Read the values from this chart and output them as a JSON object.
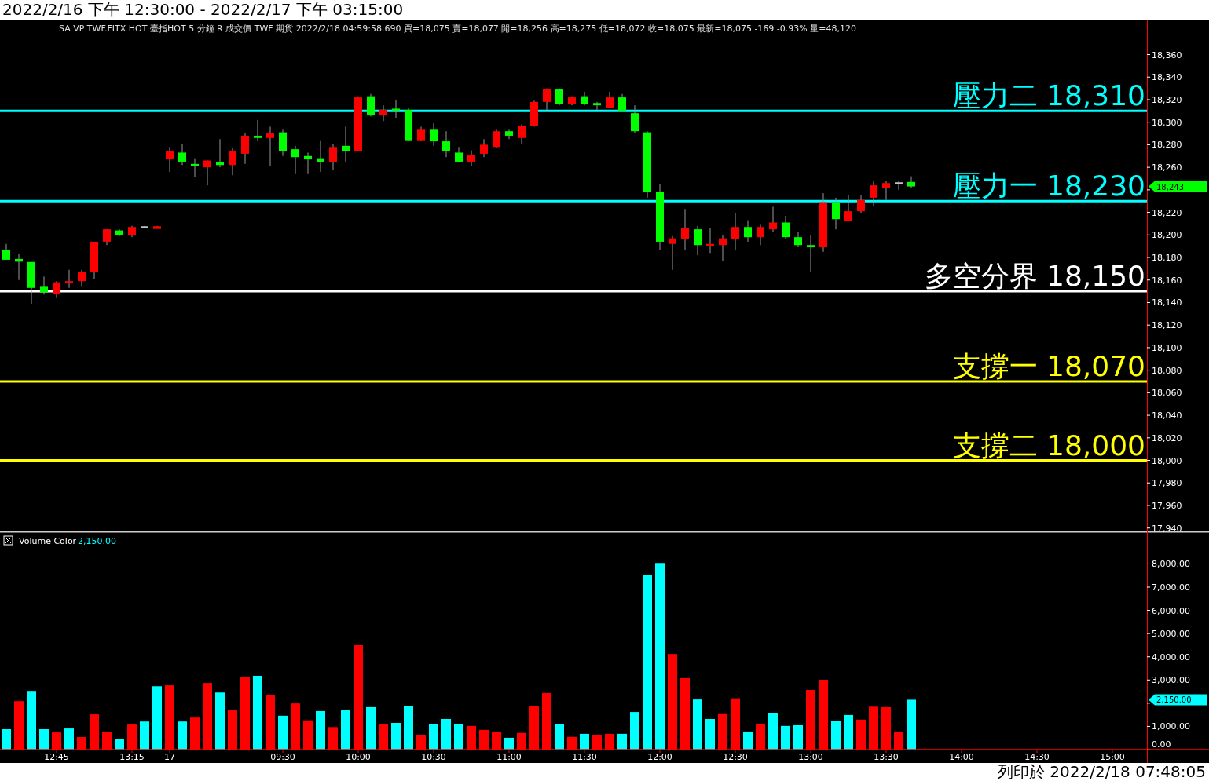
{
  "chart_data": [
    {
      "type": "candlestick",
      "title": "2022/2/16 下午 12:30:00 - 2022/2/17 下午 03:15:00",
      "annotations": [
        "SA VP TWF.FITX HOT 臺指HOT 5 分鐘 R 成交價 TWF 期貨 2022/2/18 04:59:58.690 買=18,075 賣=18,077 開=18,256 高=18,275 低=18,072 收=18,075 最新=18,075 -169 -0.93% 量=48,120",
        "18,243"
      ],
      "categories": [
        null,
        null,
        null,
        null,
        null,
        null,
        null,
        null,
        null,
        null,
        null,
        null,
        null,
        null,
        null,
        null,
        null,
        null,
        null,
        null,
        null,
        null,
        null,
        null,
        null,
        null,
        null,
        null,
        null,
        null,
        null,
        null,
        null,
        null,
        null,
        null,
        null,
        null,
        null,
        null,
        null,
        null,
        null,
        null,
        null,
        null,
        null,
        null,
        null,
        null,
        null,
        null,
        null,
        null,
        null,
        null,
        null,
        null,
        null,
        null,
        null,
        null,
        null,
        null,
        null,
        null,
        null,
        null,
        null,
        null,
        null,
        null,
        null,
        null,
        null,
        null,
        null,
        null,
        null,
        null,
        null,
        null,
        null,
        null,
        null,
        null,
        null,
        null,
        null,
        null,
        null
      ],
      "ohlc": [
        [
          18187,
          18192,
          18178,
          18178
        ],
        [
          18178,
          18183,
          18160,
          18177
        ],
        [
          18176,
          18176,
          18139,
          18153
        ],
        [
          18154,
          18163,
          18147,
          18149
        ],
        [
          18148,
          18159,
          18144,
          18158
        ],
        [
          18157,
          18169,
          18153,
          18159
        ],
        [
          18159,
          18169,
          18154,
          18167
        ],
        [
          18167,
          18194,
          18161,
          18194
        ],
        [
          18194,
          18205,
          18191,
          18205
        ],
        [
          18204,
          18205,
          18199,
          18200
        ],
        [
          18200,
          18208,
          18198,
          18207
        ],
        [
          18207,
          18208,
          18206,
          18207
        ],
        [
          18206,
          18208,
          18206,
          18207
        ],
        [
          18267,
          18278,
          18256,
          18274
        ],
        [
          18273,
          18281,
          18262,
          18265
        ],
        [
          18263,
          18268,
          18251,
          18261
        ],
        [
          18260,
          18266,
          18244,
          18266
        ],
        [
          18265,
          18285,
          18260,
          18262
        ],
        [
          18262,
          18277,
          18253,
          18274
        ],
        [
          18272,
          18290,
          18263,
          18288
        ],
        [
          18288,
          18302,
          18283,
          18286
        ],
        [
          18286,
          18296,
          18261,
          18290
        ],
        [
          18291,
          18294,
          18270,
          18274
        ],
        [
          18276,
          18279,
          18254,
          18269
        ],
        [
          18270,
          18273,
          18254,
          18267
        ],
        [
          18268,
          18284,
          18256,
          18265
        ],
        [
          18265,
          18281,
          18258,
          18278
        ],
        [
          18279,
          18296,
          18265,
          18274
        ],
        [
          18274,
          18323,
          18274,
          18322
        ],
        [
          18323,
          18325,
          18305,
          18306
        ],
        [
          18306,
          18315,
          18301,
          18311
        ],
        [
          18312,
          18320,
          18304,
          18310
        ],
        [
          18311,
          18313,
          18283,
          18284
        ],
        [
          18284,
          18296,
          18283,
          18294
        ],
        [
          18294,
          18299,
          18279,
          18283
        ],
        [
          18283,
          18292,
          18269,
          18274
        ],
        [
          18273,
          18278,
          18265,
          18265
        ],
        [
          18265,
          18275,
          18261,
          18271
        ],
        [
          18272,
          18285,
          18269,
          18280
        ],
        [
          18278,
          18294,
          18277,
          18292
        ],
        [
          18292,
          18294,
          18285,
          18288
        ],
        [
          18286,
          18298,
          18281,
          18297
        ],
        [
          18297,
          18319,
          18296,
          18318
        ],
        [
          18318,
          18330,
          18311,
          18329
        ],
        [
          18329,
          18330,
          18315,
          18316
        ],
        [
          18316,
          18323,
          18315,
          18322
        ],
        [
          18323,
          18327,
          18315,
          18316
        ],
        [
          18317,
          18318,
          18311,
          18315
        ],
        [
          18313,
          18327,
          18313,
          18322
        ],
        [
          18322,
          18325,
          18310,
          18310
        ],
        [
          18308,
          18315,
          18290,
          18292
        ],
        [
          18291,
          18292,
          18233,
          18238
        ],
        [
          18238,
          18245,
          18187,
          18194
        ],
        [
          18192,
          18199,
          18169,
          18197
        ],
        [
          18196,
          18223,
          18187,
          18206
        ],
        [
          18205,
          18208,
          18182,
          18191
        ],
        [
          18190,
          18206,
          18184,
          18192
        ],
        [
          18191,
          18200,
          18177,
          18197
        ],
        [
          18196,
          18219,
          18187,
          18207
        ],
        [
          18207,
          18213,
          18194,
          18198
        ],
        [
          18198,
          18209,
          18191,
          18207
        ],
        [
          18205,
          18225,
          18203,
          18211
        ],
        [
          18211,
          18217,
          18196,
          18198
        ],
        [
          18198,
          18203,
          18189,
          18191
        ],
        [
          18191,
          18200,
          18167,
          18189
        ],
        [
          18189,
          18237,
          18185,
          18229
        ],
        [
          18229,
          18233,
          18205,
          18214
        ],
        [
          18212,
          18235,
          18212,
          18221
        ],
        [
          18221,
          18235,
          18219,
          18231
        ],
        [
          18233,
          18248,
          18226,
          18244
        ],
        [
          18242,
          18248,
          18231,
          18246
        ],
        [
          18246,
          18248,
          18240,
          18246
        ],
        [
          18247,
          18252,
          18242,
          18243
        ],
        null,
        null,
        null,
        null,
        null,
        null,
        null,
        null,
        null,
        null,
        null,
        null,
        null,
        null,
        null,
        null,
        null,
        null
      ],
      "ylim": [
        17937,
        18391
      ],
      "yticks": [
        {
          "value": 17940,
          "label": "17,940"
        },
        {
          "value": 17960,
          "label": "17,960"
        },
        {
          "value": 17980,
          "label": "17,980"
        },
        {
          "value": 18000,
          "label": "18,000"
        },
        {
          "value": 18020,
          "label": "18,020"
        },
        {
          "value": 18040,
          "label": "18,040"
        },
        {
          "value": 18060,
          "label": "18,060"
        },
        {
          "value": 18080,
          "label": "18,080"
        },
        {
          "value": 18100,
          "label": "18,100"
        },
        {
          "value": 18120,
          "label": "18,120"
        },
        {
          "value": 18140,
          "label": "18,140"
        },
        {
          "value": 18160,
          "label": "18,160"
        },
        {
          "value": 18180,
          "label": "18,180"
        },
        {
          "value": 18200,
          "label": "18,200"
        },
        {
          "value": 18220,
          "label": "18,220"
        },
        {
          "value": 18240,
          "label": null
        },
        {
          "value": 18260,
          "label": "18,260"
        },
        {
          "value": 18280,
          "label": "18,280"
        },
        {
          "value": 18300,
          "label": "18,300"
        },
        {
          "value": 18320,
          "label": "18,320"
        },
        {
          "value": 18340,
          "label": "18,340"
        },
        {
          "value": 18360,
          "label": "18,360"
        }
      ],
      "ref_lines": [
        {
          "axis": "y",
          "value": 18310,
          "label": "壓力二 18,310",
          "color": "#00ffff"
        },
        {
          "axis": "y",
          "value": 18230,
          "label": "壓力一 18,230",
          "color": "#00ffff"
        },
        {
          "axis": "y",
          "value": 18150,
          "label": "多空分界 18,150",
          "color": "#ffffff"
        },
        {
          "axis": "y",
          "value": 18070,
          "label": "支撐一 18,070",
          "color": "#ffff00"
        },
        {
          "axis": "y",
          "value": 18000,
          "label": "支撐二 18,000",
          "color": "#ffff00"
        }
      ],
      "tick_labels": "y"
    },
    {
      "type": "bar",
      "legend": "top left",
      "categories": [
        null,
        null,
        null,
        null,
        "12:45",
        null,
        null,
        null,
        null,
        null,
        "13:15",
        null,
        null,
        "17",
        null,
        null,
        null,
        null,
        null,
        null,
        null,
        null,
        "09:30",
        null,
        null,
        null,
        null,
        null,
        "10:00",
        null,
        null,
        null,
        null,
        null,
        "10:30",
        null,
        null,
        null,
        null,
        null,
        "11:00",
        null,
        null,
        null,
        null,
        null,
        "11:30",
        null,
        null,
        null,
        null,
        null,
        "12:00",
        null,
        null,
        null,
        null,
        null,
        "12:30",
        null,
        null,
        null,
        null,
        null,
        "13:00",
        null,
        null,
        null,
        null,
        null,
        "13:30",
        null,
        null,
        null,
        null,
        null,
        "14:00",
        null,
        null,
        null,
        null,
        null,
        "14:30",
        null,
        null,
        null,
        null,
        null,
        "15:00",
        null,
        null
      ],
      "series": [
        {
          "name": "Volume Color",
          "values": [
            880,
            2090,
            2530,
            880,
            740,
            910,
            540,
            1520,
            770,
            440,
            1080,
            1210,
            2730,
            2770,
            1210,
            1380,
            2870,
            2460,
            1690,
            3110,
            3180,
            2340,
            1460,
            1990,
            1260,
            1660,
            970,
            1690,
            4500,
            1830,
            1110,
            1150,
            1890,
            640,
            1090,
            1320,
            1110,
            1020,
            850,
            780,
            510,
            720,
            1870,
            2440,
            1090,
            550,
            680,
            610,
            680,
            680,
            1620,
            7540,
            8040,
            4120,
            3080,
            2160,
            1320,
            1530,
            2210,
            780,
            1120,
            1580,
            1020,
            1050,
            2570,
            3010,
            1250,
            1490,
            1290,
            1850,
            1830,
            780,
            2150,
            null,
            null,
            null,
            null,
            null,
            null,
            null,
            null,
            null,
            null,
            null,
            null,
            null,
            null,
            null,
            null,
            null,
            null
          ]
        }
      ],
      "colors": [
        "#00ffff",
        "#ff0000",
        "#00ffff",
        "#00ffff",
        "#ff0000",
        "#00ffff",
        "#ff0000",
        "#ff0000",
        "#ff0000",
        "#00ffff",
        "#ff0000",
        "#00ffff",
        "#00ffff",
        "#ff0000",
        "#00ffff",
        "#ff0000",
        "#ff0000",
        "#00ffff",
        "#ff0000",
        "#ff0000",
        "#00ffff",
        "#ff0000",
        "#00ffff",
        "#ff0000",
        "#ff0000",
        "#00ffff",
        "#ff0000",
        "#00ffff",
        "#ff0000",
        "#00ffff",
        "#ff0000",
        "#00ffff",
        "#00ffff",
        "#ff0000",
        "#00ffff",
        "#00ffff",
        "#00ffff",
        "#ff0000",
        "#ff0000",
        "#ff0000",
        "#00ffff",
        "#ff0000",
        "#ff0000",
        "#ff0000",
        "#00ffff",
        "#ff0000",
        "#00ffff",
        "#ff0000",
        "#ff0000",
        "#00ffff",
        "#00ffff",
        "#00ffff",
        "#00ffff",
        "#ff0000",
        "#ff0000",
        "#00ffff",
        "#00ffff",
        "#ff0000",
        "#ff0000",
        "#00ffff",
        "#ff0000",
        "#00ffff",
        "#00ffff",
        "#00ffff",
        "#ff0000",
        "#ff0000",
        "#00ffff",
        "#00ffff",
        "#ff0000",
        "#ff0000",
        "#ff0000",
        "#ff0000",
        "#00ffff",
        null,
        null,
        null,
        null,
        null,
        null,
        null,
        null,
        null,
        null,
        null,
        null,
        null,
        null,
        null,
        null,
        null,
        null
      ],
      "ylim": [
        0,
        9300
      ],
      "yticks": [
        {
          "value": 0,
          "label": "0.00"
        },
        {
          "value": 1000,
          "label": "1,000.00"
        },
        {
          "value": 2000,
          "label": null
        },
        {
          "value": 3000,
          "label": "3,000.00"
        },
        {
          "value": 4000,
          "label": "4,000.00"
        },
        {
          "value": 5000,
          "label": "5,000.00"
        },
        {
          "value": 6000,
          "label": "6,000.00"
        },
        {
          "value": 7000,
          "label": "7,000.00"
        },
        {
          "value": 8000,
          "label": "8,000.00"
        }
      ],
      "annotations": [
        "2,150.00",
        "2,150.00",
        "列印於 2022/2/18 07:48:05"
      ]
    }
  ]
}
